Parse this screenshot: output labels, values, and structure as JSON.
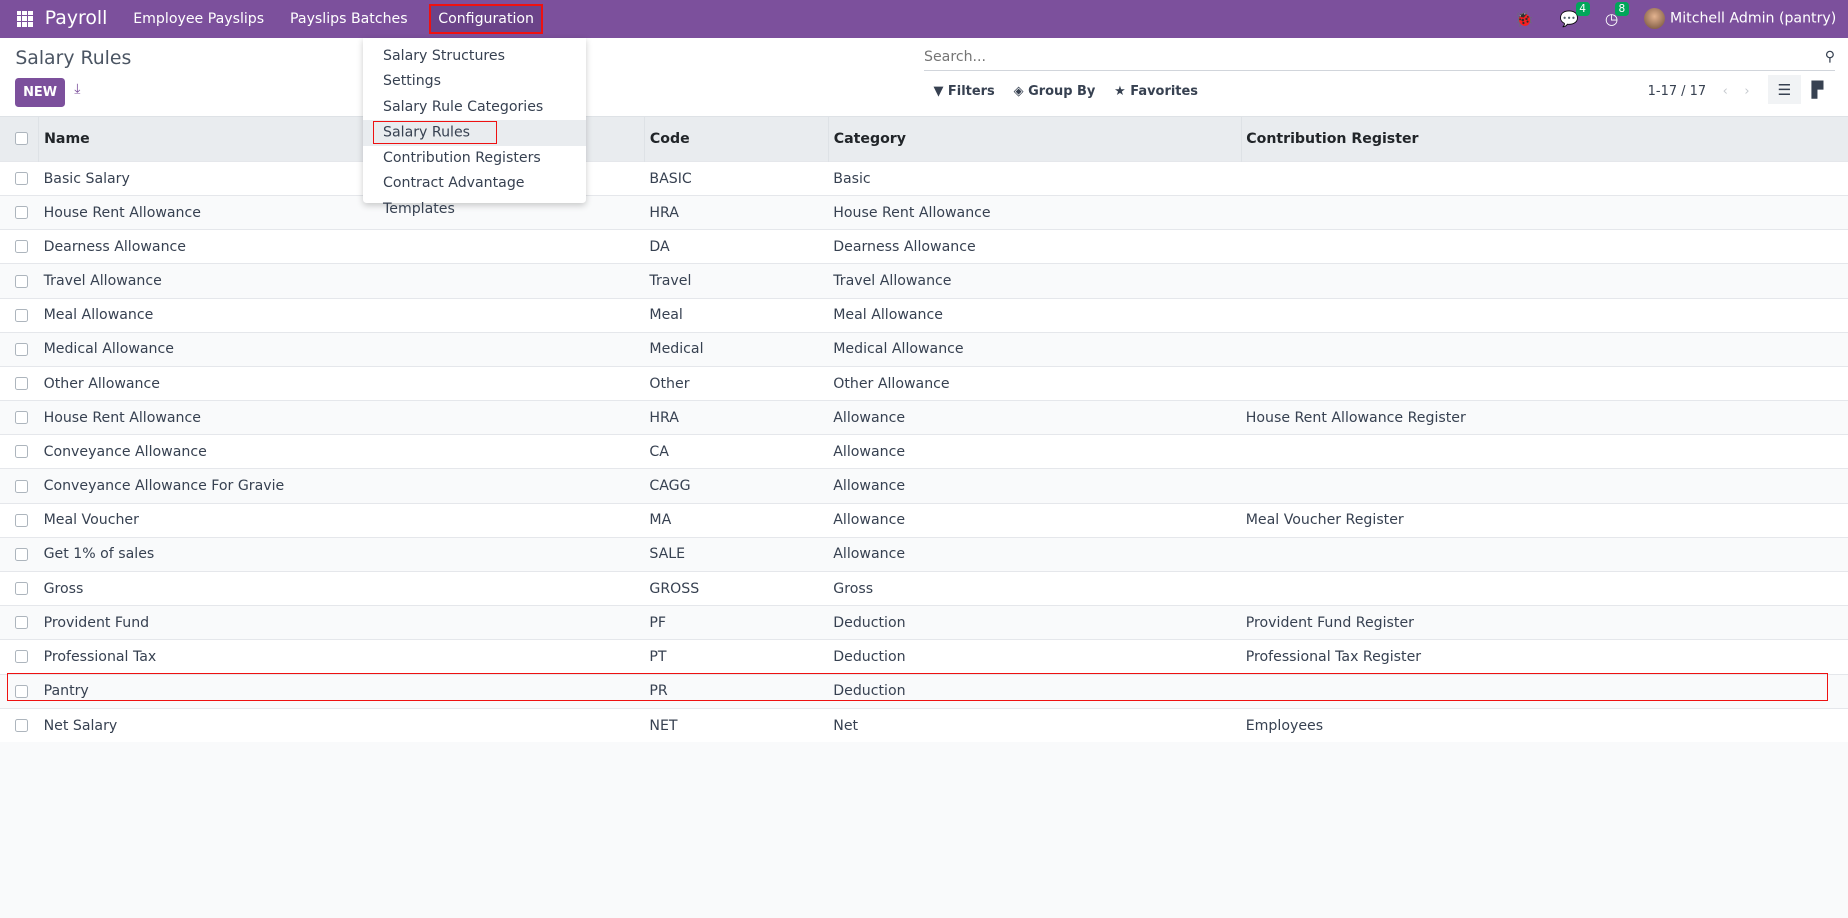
{
  "navbar": {
    "app": "Payroll",
    "menus": [
      "Employee Payslips",
      "Payslips Batches",
      "Configuration"
    ],
    "chat_count": "4",
    "activity_count": "8",
    "user": "Mitchell Admin (pantry)",
    "color": "#7c509c"
  },
  "dropdown": {
    "items": [
      "Salary Structures",
      "Settings",
      "Salary Rule Categories",
      "Salary Rules",
      "Contribution Registers",
      "Contract Advantage Templates"
    ],
    "selected": "Salary Rules"
  },
  "control": {
    "title": "Salary Rules",
    "new": "NEW",
    "search_placeholder": "Search...",
    "filters": "Filters",
    "group_by": "Group By",
    "favorites": "Favorites",
    "pager": "1-17 / 17"
  },
  "table": {
    "headers": [
      "Name",
      "Code",
      "Category",
      "Contribution Register"
    ],
    "rows": [
      [
        "Basic Salary",
        "BASIC",
        "Basic",
        ""
      ],
      [
        "House Rent Allowance",
        "HRA",
        "House Rent Allowance",
        ""
      ],
      [
        "Dearness Allowance",
        "DA",
        "Dearness Allowance",
        ""
      ],
      [
        "Travel Allowance",
        "Travel",
        "Travel Allowance",
        ""
      ],
      [
        "Meal Allowance",
        "Meal",
        "Meal Allowance",
        ""
      ],
      [
        "Medical Allowance",
        "Medical",
        "Medical Allowance",
        ""
      ],
      [
        "Other Allowance",
        "Other",
        "Other Allowance",
        ""
      ],
      [
        "House Rent Allowance",
        "HRA",
        "Allowance",
        "House Rent Allowance Register"
      ],
      [
        "Conveyance Allowance",
        "CA",
        "Allowance",
        ""
      ],
      [
        "Conveyance Allowance For Gravie",
        "CAGG",
        "Allowance",
        ""
      ],
      [
        "Meal Voucher",
        "MA",
        "Allowance",
        "Meal Voucher Register"
      ],
      [
        "Get 1% of sales",
        "SALE",
        "Allowance",
        ""
      ],
      [
        "Gross",
        "GROSS",
        "Gross",
        ""
      ],
      [
        "Provident Fund",
        "PF",
        "Deduction",
        "Provident Fund Register"
      ],
      [
        "Professional Tax",
        "PT",
        "Deduction",
        "Professional Tax Register"
      ],
      [
        "Pantry",
        "PR",
        "Deduction",
        ""
      ],
      [
        "Net Salary",
        "NET",
        "Net",
        "Employees"
      ]
    ]
  }
}
